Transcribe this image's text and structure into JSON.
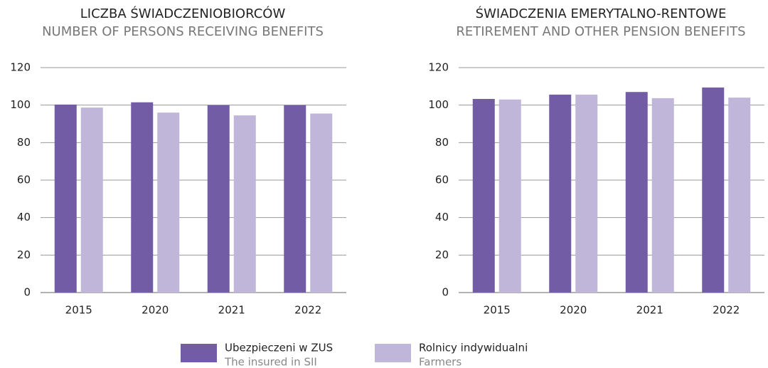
{
  "chart_data": [
    {
      "type": "bar",
      "title": "LICZBA ŚWIADCZENIOBIORCÓW",
      "subtitle": "NUMBER OF PERSONS RECEIVING BENEFITS",
      "categories": [
        "2015",
        "2020",
        "2021",
        "2022"
      ],
      "series": [
        {
          "values": [
            100.3,
            101.5,
            100,
            100
          ]
        },
        {
          "values": [
            98.7,
            96,
            94.5,
            95.5
          ]
        }
      ],
      "ylim": [
        0,
        120
      ],
      "yticks": [
        0,
        20,
        40,
        60,
        80,
        100,
        120
      ],
      "grid": true
    },
    {
      "type": "bar",
      "title": "ŚWIADCZENIA EMERYTALNO-RENTOWE",
      "subtitle": "RETIREMENT AND OTHER PENSION BENEFITS",
      "categories": [
        "2015",
        "2020",
        "2021",
        "2022"
      ],
      "series": [
        {
          "values": [
            103.3,
            105.6,
            107,
            109.4
          ]
        },
        {
          "values": [
            103,
            105.6,
            103.7,
            104
          ]
        }
      ],
      "ylim": [
        0,
        120
      ],
      "yticks": [
        0,
        20,
        40,
        60,
        80,
        100,
        120
      ],
      "grid": true
    }
  ],
  "legend": [
    {
      "name": "Ubezpieczeni w ZUS",
      "name_en": "The insured in SII",
      "color": "#735ca6"
    },
    {
      "name": "Rolnicy indywidualni",
      "name_en": "Farmers",
      "color": "#c0b6d9"
    }
  ]
}
